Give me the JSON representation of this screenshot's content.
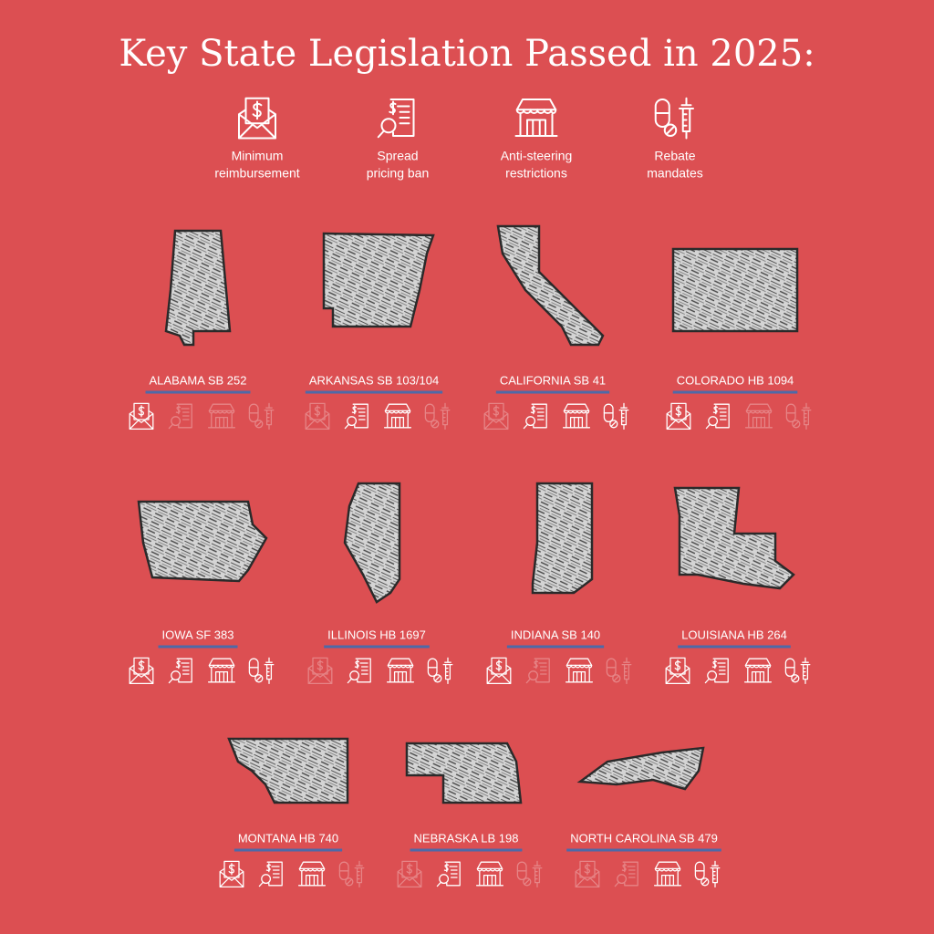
{
  "title": "Key State Legislation Passed in 2025:",
  "legend": [
    {
      "lines": [
        "Minimum",
        "reimbursement"
      ]
    },
    {
      "lines": [
        "Spread",
        "pricing ban"
      ]
    },
    {
      "lines": [
        "Anti-steering",
        "restrictions"
      ]
    },
    {
      "lines": [
        "Rebate",
        "mandates"
      ]
    }
  ],
  "states": [
    {
      "label": "ALABAMA SB 252",
      "active": [
        true,
        false,
        false,
        false
      ]
    },
    {
      "label": "ARKANSAS SB 103/104",
      "active": [
        false,
        true,
        true,
        false
      ]
    },
    {
      "label": "CALIFORNIA SB 41",
      "active": [
        false,
        true,
        true,
        true
      ]
    },
    {
      "label": "COLORADO HB 1094",
      "active": [
        true,
        true,
        false,
        false
      ]
    },
    {
      "label": "IOWA SF 383",
      "active": [
        true,
        true,
        true,
        true
      ]
    },
    {
      "label": "ILLINOIS HB 1697",
      "active": [
        false,
        true,
        true,
        true
      ]
    },
    {
      "label": "INDIANA SB 140",
      "active": [
        true,
        false,
        true,
        false
      ]
    },
    {
      "label": "LOUISIANA HB 264",
      "active": [
        true,
        true,
        true,
        true
      ]
    },
    {
      "label": "MONTANA HB 740",
      "active": [
        true,
        true,
        true,
        false
      ]
    },
    {
      "label": "NEBRASKA LB 198",
      "active": [
        false,
        true,
        true,
        false
      ]
    },
    {
      "label": "NORTH CAROLINA SB 479",
      "active": [
        false,
        false,
        true,
        true
      ]
    }
  ]
}
